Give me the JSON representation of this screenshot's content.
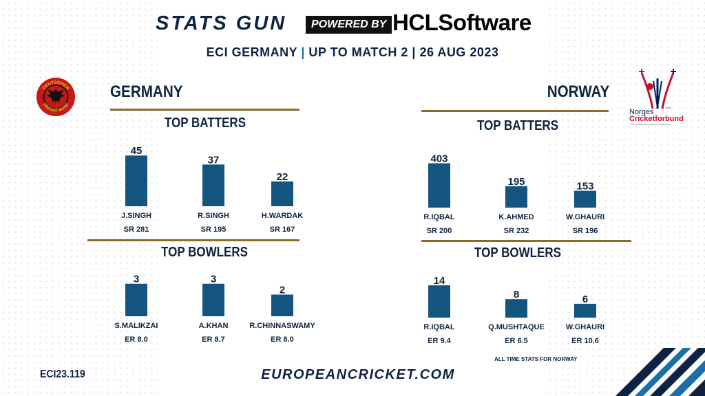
{
  "header": {
    "brand": "STATS GUN",
    "powered": "POWERED BY",
    "sponsor": "HCLSoftware",
    "subtitle_part1": "ECI GERMANY",
    "subtitle_sep1": "|",
    "subtitle_part2": "UP TO MATCH 2 | 26 AUG 2023"
  },
  "teams": {
    "left": {
      "name": "GERMANY",
      "logo_top_text": "DEUTSCHER",
      "logo_bottom_text": "CRICKET BUND"
    },
    "right": {
      "name": "NORWAY",
      "logo_text_1": "Norges",
      "logo_text_2": "Cricketforbund",
      "logo_year": "1994",
      "logo_tagline": "THE NORWEGIAN CRICKET FEDERATION"
    }
  },
  "sections": {
    "batters": "TOP BATTERS",
    "bowlers": "TOP BOWLERS"
  },
  "footer": {
    "code": "ECI23.119",
    "site": "EUROPEANCRICKET.COM",
    "note": "ALL TIME STATS FOR NORWAY"
  },
  "colors": {
    "bar": "#13557e",
    "navy": "#0d2340",
    "gold_rule": "#8b6a2b",
    "accent_blue": "#1a6fa8"
  },
  "chart_data": [
    {
      "type": "bar",
      "title": "TOP BATTERS",
      "team": "GERMANY",
      "categories": [
        "J.SINGH",
        "R.SINGH",
        "H.WARDAK"
      ],
      "values": [
        45,
        37,
        22
      ],
      "sublabels": [
        "SR 281",
        "SR 195",
        "SR 167"
      ],
      "ylim": [
        0,
        50
      ]
    },
    {
      "type": "bar",
      "title": "TOP BOWLERS",
      "team": "GERMANY",
      "categories": [
        "S.MALIKZAI",
        "A.KHAN",
        "R.CHINNASWAMY"
      ],
      "values": [
        3,
        3,
        2
      ],
      "sublabels": [
        "ER 8.0",
        "ER 8.7",
        "ER 8.0"
      ],
      "ylim": [
        0,
        3.3
      ]
    },
    {
      "type": "bar",
      "title": "TOP BATTERS",
      "team": "NORWAY",
      "categories": [
        "R.IQBAL",
        "K.AHMED",
        "W.GHAURI"
      ],
      "values": [
        403,
        195,
        153
      ],
      "sublabels": [
        "SR 200",
        "SR 232",
        "SR 196"
      ],
      "ylim": [
        0,
        450
      ]
    },
    {
      "type": "bar",
      "title": "TOP BOWLERS",
      "team": "NORWAY",
      "categories": [
        "R.IQBAL",
        "Q.MUSHTAQUE",
        "W.GHAURI"
      ],
      "values": [
        14,
        8,
        6
      ],
      "sublabels": [
        "ER 9.4",
        "ER 6.5",
        "ER 10.6"
      ],
      "ylim": [
        0,
        15.5
      ]
    }
  ]
}
